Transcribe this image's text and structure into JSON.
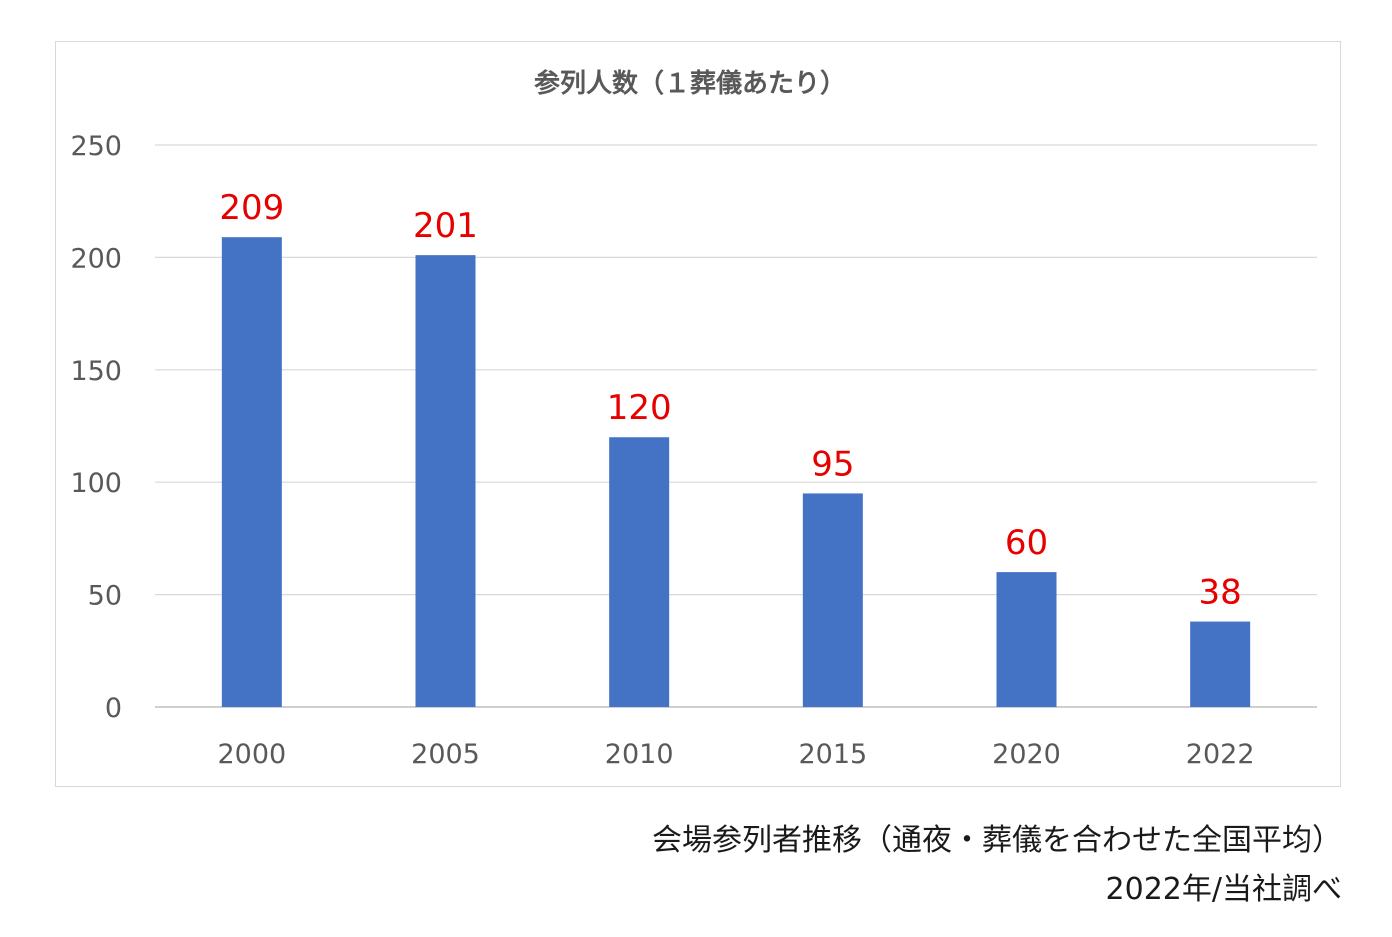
{
  "chart_data": {
    "type": "bar",
    "title": "参列人数（１葬儀あたり）",
    "categories": [
      "2000",
      "2005",
      "2010",
      "2015",
      "2020",
      "2022"
    ],
    "values": [
      209,
      201,
      120,
      95,
      60,
      38
    ],
    "data_labels": [
      "209",
      "201",
      "120",
      "95",
      "60",
      "38"
    ],
    "ylim": [
      0,
      250
    ],
    "yticks": [
      0,
      50,
      100,
      150,
      200,
      250
    ],
    "grid": true,
    "legend": "none",
    "bar_color": "#4472c4",
    "label_color": "#e60000"
  },
  "captions": {
    "line1": "会場参列者推移（通夜・葬儀を合わせた全国平均）",
    "line2": "2022年/当社調べ"
  }
}
